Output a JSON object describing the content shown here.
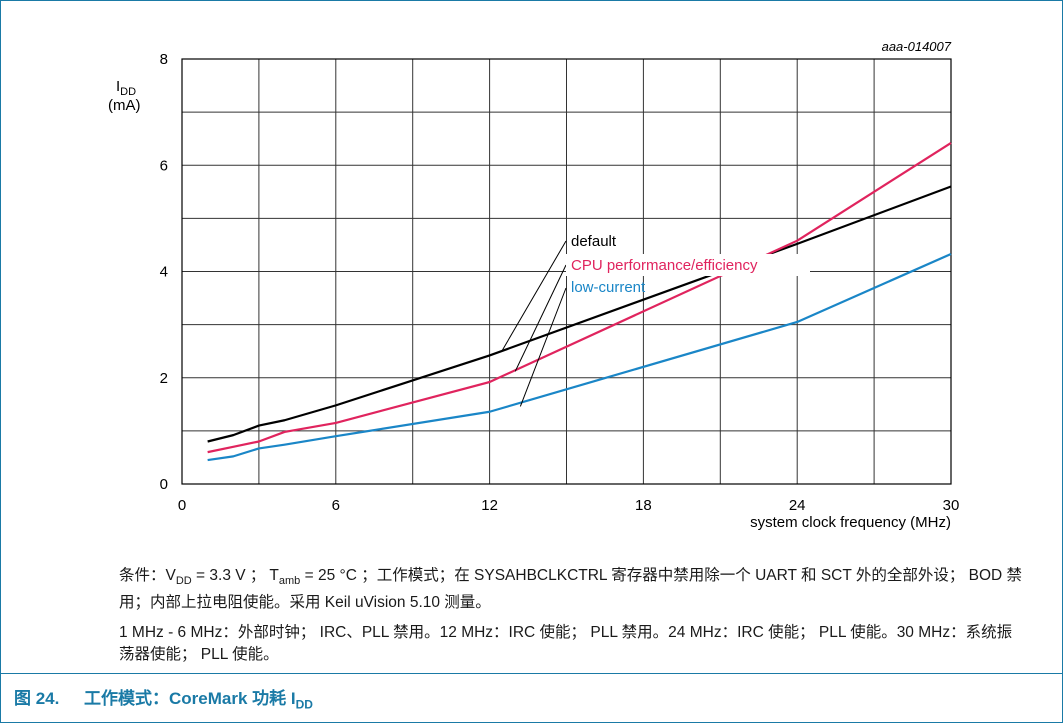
{
  "chart_data": {
    "type": "line",
    "id_label": "aaa-014007",
    "ylabel": "I",
    "ylabel_sub": "DD",
    "ylabel_unit": "(mA)",
    "xlabel": "system clock frequency (MHz)",
    "xlim": [
      0,
      30
    ],
    "ylim": [
      0,
      8
    ],
    "xticks": [
      0,
      6,
      12,
      18,
      24,
      30
    ],
    "yticks": [
      0,
      2,
      4,
      6,
      8
    ],
    "grid": true,
    "series": [
      {
        "name": "default",
        "color": "#000000",
        "x": [
          1,
          2,
          3,
          4,
          6,
          12,
          24,
          30
        ],
        "y": [
          0.8,
          0.92,
          1.1,
          1.2,
          1.48,
          2.42,
          4.52,
          5.6
        ]
      },
      {
        "name": "CPU performance/efficiency",
        "color": "#e0245e",
        "x": [
          1,
          2,
          3,
          4,
          6,
          12,
          24,
          30
        ],
        "y": [
          0.6,
          0.7,
          0.8,
          0.98,
          1.15,
          1.92,
          4.58,
          6.42
        ]
      },
      {
        "name": "low-current",
        "color": "#1a86c7",
        "x": [
          1,
          2,
          3,
          4,
          6,
          12,
          24,
          30
        ],
        "y": [
          0.45,
          0.52,
          0.67,
          0.74,
          0.9,
          1.36,
          3.05,
          4.33
        ]
      }
    ]
  },
  "notes": {
    "n1": {
      "a": "条件：V",
      "a_sub": "DD",
      "b": " = 3.3 V ；  T",
      "b_sub": "amb",
      "c": " = 25 °C ；工作模式；在 SYSAHBCLKCTRL 寄存器中禁用除一个 UART 和 SCT 外的全部外设； BOD 禁用；内部上拉电阻使能。采用 Keil uVision 5.10 测量。"
    },
    "n2": "1 MHz - 6 MHz：外部时钟； IRC、PLL 禁用。12 MHz：IRC 使能； PLL 禁用。24 MHz：IRC 使能； PLL 使能。30 MHz：系统振荡器使能； PLL 使能。"
  },
  "caption": {
    "number": "图 24.",
    "text": "工作模式：CoreMark 功耗 I",
    "sub": "DD"
  }
}
